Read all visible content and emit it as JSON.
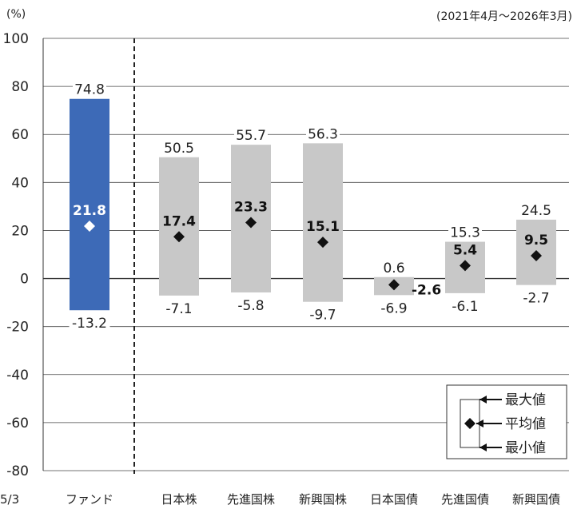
{
  "chart_data": {
    "type": "range_bar",
    "unit_label": "(%)",
    "period_label": "(2021年4月～2026年3月)",
    "ylim": [
      -80,
      100
    ],
    "yticks": [
      100,
      80,
      60,
      40,
      20,
      0,
      -20,
      -40,
      -60,
      -80
    ],
    "ytick_labels": [
      "100",
      "80",
      "60",
      "40",
      "20",
      "0",
      "-20",
      "-40",
      "-60",
      "-80"
    ],
    "stray_label": "5/3",
    "categories": [
      "ファンド",
      "日本株",
      "先進国株",
      "新興国株",
      "日本国債",
      "先進国債",
      "新興国債"
    ],
    "max_labels": [
      "74.8",
      "50.5",
      "55.7",
      "56.3",
      "0.6",
      "15.3",
      "24.5"
    ],
    "avg_labels": [
      "21.8",
      "17.4",
      "23.3",
      "15.1",
      "-2.6",
      "5.4",
      "9.5"
    ],
    "min_labels": [
      "-13.2",
      "-7.1",
      "-5.8",
      "-9.7",
      "-6.9",
      "-6.1",
      "-2.7"
    ],
    "series": [
      {
        "name": "最大値",
        "values": [
          74.8,
          50.5,
          55.7,
          56.3,
          0.6,
          15.3,
          24.5
        ]
      },
      {
        "name": "平均値",
        "values": [
          21.8,
          17.4,
          23.3,
          15.1,
          -2.6,
          5.4,
          9.5
        ]
      },
      {
        "name": "最小値",
        "values": [
          -13.2,
          -7.1,
          -5.8,
          -9.7,
          -6.9,
          -6.1,
          -2.7
        ]
      }
    ],
    "colors": {
      "fund": "#3d6ab7",
      "others": "#c8c8c8",
      "marker": "#111111",
      "fund_marker": "#ffffff"
    },
    "legend": {
      "position": "bottom-right",
      "items": [
        "最大値",
        "平均値",
        "最小値"
      ]
    },
    "grid": true
  }
}
